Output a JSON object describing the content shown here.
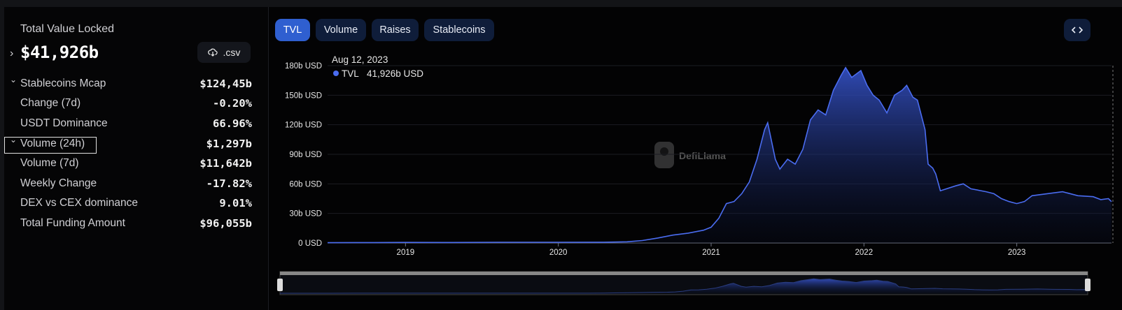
{
  "summary": {
    "title": "Total Value Locked",
    "value": "$41,926b",
    "download": ".csv",
    "rows": [
      {
        "label": "Stablecoins Mcap",
        "value": "$124,45b"
      },
      {
        "label": "Change (7d)",
        "value": "-0.20%"
      },
      {
        "label": "USDT Dominance",
        "value": "66.96%"
      },
      {
        "label": "Volume (24h)",
        "value": "$1,297b"
      },
      {
        "label": "Volume (7d)",
        "value": "$11,642b"
      },
      {
        "label": "Weekly Change",
        "value": "-17.82%"
      },
      {
        "label": "DEX vs CEX dominance",
        "value": "9.01%"
      },
      {
        "label": "Total Funding Amount",
        "value": "$96,055b"
      }
    ]
  },
  "tabs": [
    "TVL",
    "Volume",
    "Raises",
    "Stablecoins"
  ],
  "chart_data": {
    "type": "area",
    "watermark": "DefiLlama",
    "tooltip": {
      "date": "Aug 12, 2023",
      "series": "TVL",
      "value": "41,926b USD"
    },
    "x": [
      2018.49,
      2018.8,
      2019.0,
      2019.3,
      2019.6,
      2020.0,
      2020.3,
      2020.45,
      2020.55,
      2020.65,
      2020.75,
      2020.85,
      2020.95,
      2021.0,
      2021.05,
      2021.1,
      2021.15,
      2021.2,
      2021.25,
      2021.3,
      2021.35,
      2021.37,
      2021.42,
      2021.45,
      2021.5,
      2021.55,
      2021.6,
      2021.65,
      2021.7,
      2021.75,
      2021.8,
      2021.85,
      2021.88,
      2021.92,
      2021.98,
      2022.02,
      2022.06,
      2022.1,
      2022.15,
      2022.2,
      2022.25,
      2022.28,
      2022.32,
      2022.35,
      2022.4,
      2022.42,
      2022.45,
      2022.47,
      2022.5,
      2022.6,
      2022.65,
      2022.7,
      2022.8,
      2022.85,
      2022.9,
      2022.95,
      2023.0,
      2023.05,
      2023.1,
      2023.2,
      2023.3,
      2023.4,
      2023.5,
      2023.55,
      2023.6,
      2023.62
    ],
    "series": [
      {
        "name": "TVL",
        "color": "#4a6cf0",
        "values": [
          0.3,
          0.4,
          0.6,
          0.5,
          0.7,
          0.7,
          0.8,
          1.2,
          2.5,
          5,
          8,
          10,
          13,
          16,
          25,
          40,
          42,
          50,
          62,
          85,
          115,
          122,
          85,
          75,
          85,
          80,
          95,
          125,
          135,
          130,
          155,
          170,
          178,
          168,
          175,
          160,
          150,
          145,
          132,
          150,
          155,
          160,
          148,
          145,
          115,
          80,
          76,
          70,
          53,
          58,
          60,
          55,
          52,
          50,
          45,
          42,
          40,
          42,
          48,
          50,
          52,
          48,
          47,
          44,
          45,
          41.926
        ]
      }
    ],
    "xlim": [
      2018.49,
      2023.62
    ],
    "xticks": [
      2019,
      2020,
      2021,
      2022,
      2023
    ],
    "ylim": [
      0,
      180
    ],
    "yticks": [
      {
        "value": 0,
        "label": "0 USD"
      },
      {
        "value": 30,
        "label": "30b USD"
      },
      {
        "value": 60,
        "label": "60b USD"
      },
      {
        "value": 90,
        "label": "90b USD"
      },
      {
        "value": 120,
        "label": "120b USD"
      },
      {
        "value": 150,
        "label": "150b USD"
      },
      {
        "value": 180,
        "label": "180b USD"
      }
    ],
    "grid": true
  }
}
